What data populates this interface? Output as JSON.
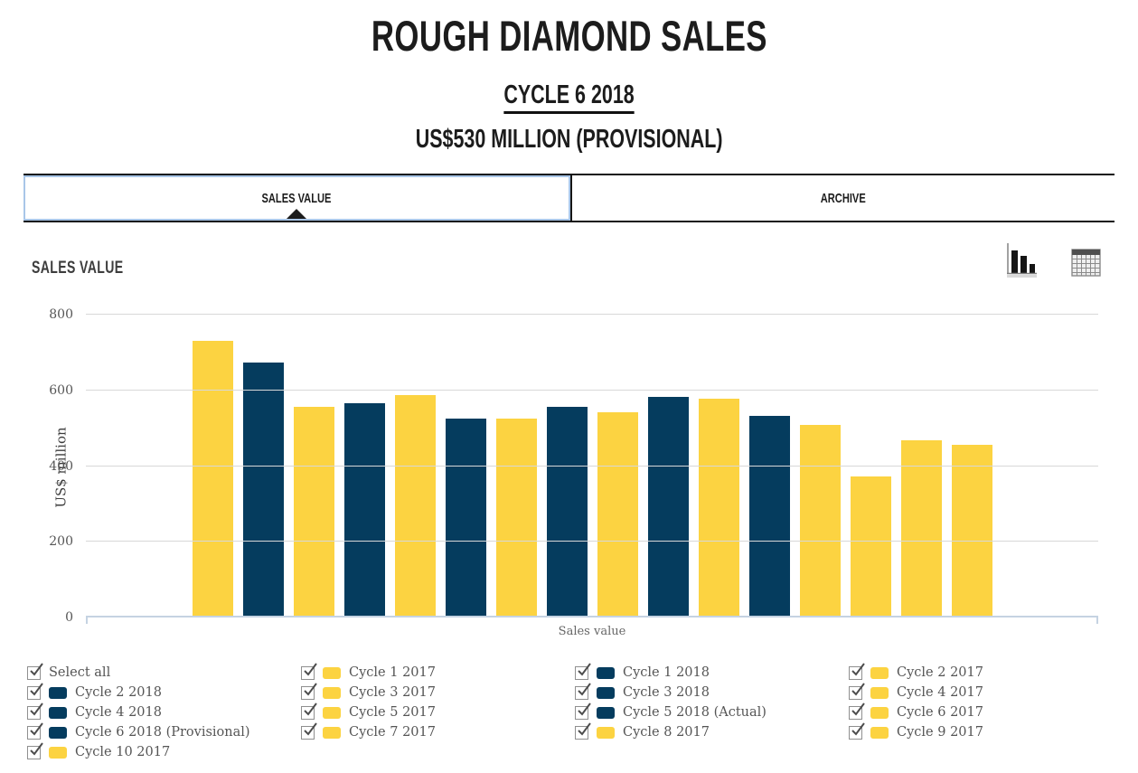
{
  "page": {
    "title": "ROUGH DIAMOND SALES",
    "cycle_heading": "CYCLE 6 2018",
    "amount_heading": "US$530 MILLION (PROVISIONAL)"
  },
  "tabs": [
    {
      "label": "SALES VALUE",
      "active": true
    },
    {
      "label": "ARCHIVE",
      "active": false
    }
  ],
  "section": {
    "heading": "SALES VALUE",
    "view_toggles": [
      {
        "name": "bar-chart-view",
        "icon": "bar-chart-icon",
        "active": true
      },
      {
        "name": "table-view",
        "icon": "table-icon",
        "active": false
      }
    ]
  },
  "colors": {
    "navy": "#053C5E",
    "yellow": "#FCD341",
    "grid_line": "#D8D8D8",
    "axis_line": "#C5D3E2",
    "tab_active_border": "#A9C6E8",
    "dark_line": "#151515",
    "text_dark": "#1C1C1C",
    "text_gray": "#555555"
  },
  "chart_data": {
    "type": "bar",
    "title": "Sales value",
    "xlabel": "Sales value",
    "ylabel": "US$ million",
    "ylim": [
      0,
      800
    ],
    "yticks": [
      0,
      200,
      400,
      600,
      800
    ],
    "grid": true,
    "legend_position": "bottom",
    "bars": [
      {
        "label": "Cycle 1 2017",
        "series": "2017",
        "value": 729,
        "color": "yellow"
      },
      {
        "label": "Cycle 1 2018",
        "series": "2018",
        "value": 672,
        "color": "navy"
      },
      {
        "label": "Cycle 2 2017",
        "series": "2017",
        "value": 553,
        "color": "yellow"
      },
      {
        "label": "Cycle 2 2018",
        "series": "2018",
        "value": 563,
        "color": "navy"
      },
      {
        "label": "Cycle 3 2017",
        "series": "2017",
        "value": 586,
        "color": "yellow"
      },
      {
        "label": "Cycle 3 2018",
        "series": "2018",
        "value": 524,
        "color": "navy"
      },
      {
        "label": "Cycle 4 2017",
        "series": "2017",
        "value": 522,
        "color": "yellow"
      },
      {
        "label": "Cycle 4 2018",
        "series": "2018",
        "value": 554,
        "color": "navy"
      },
      {
        "label": "Cycle 5 2017",
        "series": "2017",
        "value": 540,
        "color": "yellow"
      },
      {
        "label": "Cycle 5 2018 (Actual)",
        "series": "2018",
        "value": 581,
        "color": "navy"
      },
      {
        "label": "Cycle 6 2017",
        "series": "2017",
        "value": 576,
        "color": "yellow"
      },
      {
        "label": "Cycle 6 2018 (Provisional)",
        "series": "2018",
        "value": 530,
        "color": "navy"
      },
      {
        "label": "Cycle 7 2017",
        "series": "2017",
        "value": 507,
        "color": "yellow"
      },
      {
        "label": "Cycle 8 2017",
        "series": "2017",
        "value": 370,
        "color": "yellow"
      },
      {
        "label": "Cycle 9 2017",
        "series": "2017",
        "value": 466,
        "color": "yellow"
      },
      {
        "label": "Cycle 10 2017",
        "series": "2017",
        "value": 455,
        "color": "yellow"
      }
    ]
  },
  "legend": {
    "items": [
      {
        "label": "Select all",
        "checked": true,
        "color": null
      },
      {
        "label": "Cycle 1 2017",
        "checked": true,
        "color": "yellow"
      },
      {
        "label": "Cycle 1 2018",
        "checked": true,
        "color": "navy"
      },
      {
        "label": "Cycle 2 2017",
        "checked": true,
        "color": "yellow"
      },
      {
        "label": "Cycle 2 2018",
        "checked": true,
        "color": "navy"
      },
      {
        "label": "Cycle 3 2017",
        "checked": true,
        "color": "yellow"
      },
      {
        "label": "Cycle 3 2018",
        "checked": true,
        "color": "navy"
      },
      {
        "label": "Cycle 4 2017",
        "checked": true,
        "color": "yellow"
      },
      {
        "label": "Cycle 4 2018",
        "checked": true,
        "color": "navy"
      },
      {
        "label": "Cycle 5 2017",
        "checked": true,
        "color": "yellow"
      },
      {
        "label": "Cycle 5 2018 (Actual)",
        "checked": true,
        "color": "navy"
      },
      {
        "label": "Cycle 6 2017",
        "checked": true,
        "color": "yellow"
      },
      {
        "label": "Cycle 6 2018 (Provisional)",
        "checked": true,
        "color": "navy"
      },
      {
        "label": "Cycle 7 2017",
        "checked": true,
        "color": "yellow"
      },
      {
        "label": "Cycle 8 2017",
        "checked": true,
        "color": "yellow"
      },
      {
        "label": "Cycle 9 2017",
        "checked": true,
        "color": "yellow"
      },
      {
        "label": "Cycle 10 2017",
        "checked": true,
        "color": "yellow"
      }
    ]
  }
}
